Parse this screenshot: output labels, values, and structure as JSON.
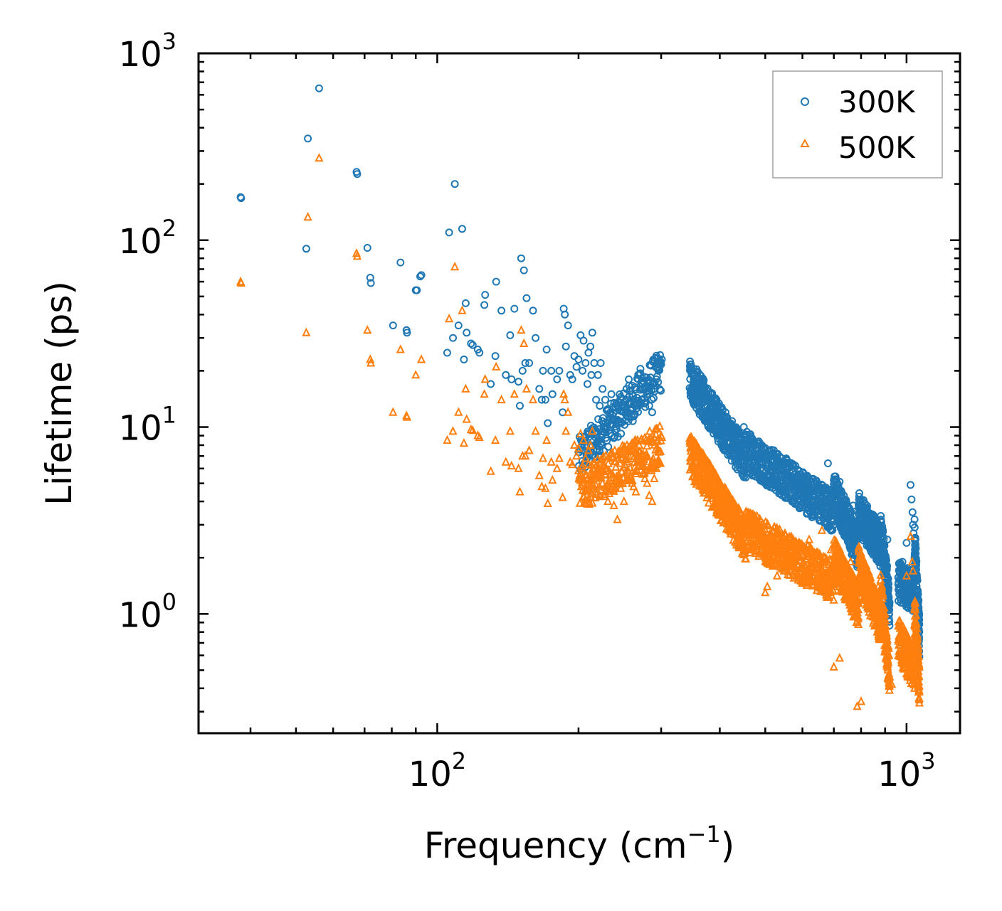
{
  "chart_data": {
    "type": "scatter",
    "xscale": "log",
    "yscale": "log",
    "xlim": [
      31,
      1300
    ],
    "ylim": [
      0.23,
      1000
    ],
    "xlabel": "Frequency (cm",
    "xlabel_sup": "−1",
    "xlabel_end": ")",
    "ylabel": "Lifetime (ps)",
    "x_ticks": [
      {
        "value": 100,
        "base": "10",
        "exp": "2"
      },
      {
        "value": 1000,
        "base": "10",
        "exp": "3"
      }
    ],
    "y_ticks": [
      {
        "value": 1,
        "base": "10",
        "exp": "0"
      },
      {
        "value": 10,
        "base": "10",
        "exp": "1"
      },
      {
        "value": 100,
        "base": "10",
        "exp": "2"
      },
      {
        "value": 1000,
        "base": "10",
        "exp": "3"
      }
    ],
    "legend_position": "top-right",
    "series": [
      {
        "name": "300K",
        "marker": "circle",
        "color": "#1f77b4",
        "points": [
          [
            38.1,
            170
          ],
          [
            38.2,
            168
          ],
          [
            52.6,
            90
          ],
          [
            53.0,
            350
          ],
          [
            56.0,
            650
          ],
          [
            67.3,
            232
          ],
          [
            67.5,
            226
          ],
          [
            71.0,
            91
          ],
          [
            72.0,
            63
          ],
          [
            72.2,
            59
          ],
          [
            80.5,
            35
          ],
          [
            83.5,
            76
          ],
          [
            86.0,
            33
          ],
          [
            86.2,
            32
          ],
          [
            90.0,
            54
          ],
          [
            90.5,
            54
          ],
          [
            92.0,
            64
          ],
          [
            92.5,
            65
          ],
          [
            105,
            25
          ],
          [
            106,
            110
          ],
          [
            108,
            30
          ],
          [
            109,
            200
          ],
          [
            111,
            35
          ],
          [
            113,
            115
          ],
          [
            114,
            23
          ],
          [
            115,
            46
          ],
          [
            115.5,
            32
          ],
          [
            118,
            28
          ],
          [
            119,
            27.5
          ],
          [
            122,
            26
          ],
          [
            123,
            25
          ],
          [
            126,
            45
          ],
          [
            126.5,
            51
          ],
          [
            130,
            17
          ],
          [
            133,
            24
          ],
          [
            133.5,
            60
          ],
          [
            137,
            42
          ],
          [
            140,
            19
          ],
          [
            143,
            31
          ],
          [
            144,
            18
          ],
          [
            146,
            43
          ],
          [
            149,
            17.5
          ],
          [
            150,
            13
          ],
          [
            151,
            80
          ],
          [
            152,
            20
          ],
          [
            153,
            69
          ],
          [
            154,
            22
          ],
          [
            155,
            49
          ],
          [
            157,
            22
          ],
          [
            160,
            42
          ],
          [
            162,
            30
          ],
          [
            165,
            16
          ],
          [
            167,
            14
          ],
          [
            168,
            20
          ],
          [
            170,
            14
          ],
          [
            171,
            26
          ],
          [
            172,
            10.5
          ],
          [
            175,
            20
          ],
          [
            176,
            15
          ],
          [
            180,
            18
          ],
          [
            182,
            20
          ],
          [
            185,
            12
          ],
          [
            186,
            43
          ],
          [
            187,
            40
          ],
          [
            188,
            27
          ],
          [
            190,
            35
          ],
          [
            192,
            19
          ],
          [
            194,
            18
          ],
          [
            196,
            24
          ],
          [
            198,
            21
          ],
          [
            200,
            23
          ],
          [
            202,
            31
          ],
          [
            204,
            20
          ],
          [
            205,
            29
          ],
          [
            207,
            22
          ],
          [
            209,
            17
          ],
          [
            210,
            25
          ],
          [
            212,
            27
          ],
          [
            213,
            19
          ],
          [
            214,
            32
          ],
          [
            216,
            22
          ],
          [
            218,
            14
          ],
          [
            220,
            19
          ],
          [
            222,
            13
          ],
          [
            223,
            22
          ],
          [
            225,
            16
          ],
          [
            228,
            14
          ],
          [
            231,
            12.5
          ],
          [
            235,
            15
          ],
          [
            238,
            11
          ],
          [
            242,
            13
          ],
          [
            246,
            14.5
          ],
          [
            250,
            12
          ],
          [
            253,
            16
          ],
          [
            256,
            18
          ],
          [
            260,
            15
          ],
          [
            262,
            14
          ],
          [
            265,
            13
          ],
          [
            268,
            19
          ],
          [
            271,
            20.5
          ],
          [
            274,
            17
          ],
          [
            277,
            16
          ],
          [
            280,
            15
          ],
          [
            283,
            13
          ],
          [
            287,
            12
          ],
          [
            290,
            16
          ],
          [
            293,
            18
          ],
          [
            296,
            20
          ],
          [
            299,
            22
          ],
          [
            301,
            23
          ]
        ],
        "segments": [
          [
            200,
            6.8,
            300,
            20,
            240
          ],
          [
            345,
            18,
            455,
            6.5,
            420
          ],
          [
            455,
            7.5,
            700,
            3.5,
            520
          ],
          [
            700,
            4.5,
            790,
            2.2,
            260
          ],
          [
            790,
            3.5,
            880,
            2.3,
            220
          ],
          [
            880,
            2.8,
            920,
            1.1,
            120
          ],
          [
            960,
            1.5,
            1040,
            1.3,
            160
          ],
          [
            1040,
            2.5,
            1065,
            0.75,
            110
          ]
        ],
        "outliers": [
          [
            450,
            10
          ],
          [
            470,
            8
          ],
          [
            485,
            7.5
          ],
          [
            520,
            6.5
          ],
          [
            545,
            6
          ],
          [
            600,
            3.8
          ],
          [
            640,
            3.5
          ],
          [
            680,
            6.4
          ],
          [
            700,
            5.2
          ],
          [
            720,
            5.1
          ],
          [
            740,
            4
          ],
          [
            770,
            3.8
          ],
          [
            820,
            3
          ],
          [
            850,
            2.7
          ],
          [
            890,
            2.8
          ],
          [
            910,
            2.5
          ],
          [
            980,
            1.9
          ],
          [
            1000,
            2.4
          ],
          [
            1020,
            4.9
          ],
          [
            1025,
            4.1
          ],
          [
            1030,
            3.5
          ],
          [
            1032,
            3
          ],
          [
            1035,
            2.7
          ]
        ]
      },
      {
        "name": "500K",
        "marker": "triangle",
        "color": "#ff7f0e",
        "points": [
          [
            38.1,
            60
          ],
          [
            38.2,
            59
          ],
          [
            52.6,
            32
          ],
          [
            53.0,
            133
          ],
          [
            56.0,
            275
          ],
          [
            67.3,
            85
          ],
          [
            67.5,
            82
          ],
          [
            71.0,
            33
          ],
          [
            72.0,
            23
          ],
          [
            72.2,
            22
          ],
          [
            80.5,
            12
          ],
          [
            83.5,
            26
          ],
          [
            86.0,
            11.5
          ],
          [
            86.2,
            11.3
          ],
          [
            90.0,
            19
          ],
          [
            92.5,
            23
          ],
          [
            105,
            8.5
          ],
          [
            106,
            38
          ],
          [
            108,
            9.5
          ],
          [
            109,
            72
          ],
          [
            111,
            12
          ],
          [
            113,
            42
          ],
          [
            114,
            8.2
          ],
          [
            115,
            16
          ],
          [
            115.5,
            11
          ],
          [
            118,
            9.7
          ],
          [
            119,
            9.6
          ],
          [
            122,
            9
          ],
          [
            123,
            8.8
          ],
          [
            126,
            15
          ],
          [
            126.5,
            18
          ],
          [
            130,
            5.8
          ],
          [
            133,
            8.5
          ],
          [
            133.5,
            21
          ],
          [
            137,
            14
          ],
          [
            140,
            6.5
          ],
          [
            143,
            9.5
          ],
          [
            144,
            6.2
          ],
          [
            146,
            15
          ],
          [
            149,
            6
          ],
          [
            150,
            4.5
          ],
          [
            151,
            33
          ],
          [
            152,
            7
          ],
          [
            153,
            28
          ],
          [
            154,
            7
          ],
          [
            155,
            16
          ],
          [
            157,
            7.5
          ],
          [
            160,
            14
          ],
          [
            162,
            9.5
          ],
          [
            165,
            5.5
          ],
          [
            167,
            4.8
          ],
          [
            168,
            6.8
          ],
          [
            170,
            4.7
          ],
          [
            171,
            8.5
          ],
          [
            172,
            3.9
          ],
          [
            175,
            6.5
          ],
          [
            176,
            5.2
          ],
          [
            180,
            6
          ],
          [
            182,
            6.8
          ],
          [
            185,
            4.2
          ],
          [
            186,
            15
          ],
          [
            187,
            14
          ],
          [
            188,
            9.5
          ],
          [
            190,
            12
          ],
          [
            192,
            6.5
          ],
          [
            194,
            6.3
          ],
          [
            196,
            8
          ],
          [
            198,
            7
          ],
          [
            200,
            7.7
          ],
          [
            202,
            9.2
          ],
          [
            204,
            6.2
          ],
          [
            205,
            8.5
          ],
          [
            207,
            6.8
          ],
          [
            209,
            5.3
          ],
          [
            210,
            7.5
          ],
          [
            212,
            8
          ],
          [
            213,
            5.8
          ],
          [
            214,
            9.5
          ],
          [
            216,
            6.5
          ],
          [
            218,
            4.5
          ],
          [
            220,
            5.5
          ],
          [
            222,
            4.3
          ],
          [
            223,
            6.5
          ],
          [
            225,
            5
          ],
          [
            228,
            4.5
          ],
          [
            231,
            4
          ],
          [
            235,
            5
          ],
          [
            238,
            3.8
          ],
          [
            242,
            3.2
          ],
          [
            246,
            4.7
          ],
          [
            250,
            4
          ],
          [
            253,
            5.2
          ],
          [
            256,
            5.7
          ],
          [
            260,
            5
          ],
          [
            262,
            4.8
          ],
          [
            265,
            4.5
          ],
          [
            268,
            6.5
          ],
          [
            271,
            7
          ],
          [
            274,
            5.6
          ],
          [
            277,
            5.3
          ],
          [
            280,
            5
          ],
          [
            283,
            4.3
          ],
          [
            287,
            4
          ],
          [
            290,
            5.3
          ],
          [
            293,
            6
          ],
          [
            296,
            6.7
          ],
          [
            299,
            7.4
          ],
          [
            301,
            8.8
          ]
        ],
        "segments": [
          [
            200,
            4.6,
            300,
            8,
            240
          ],
          [
            345,
            7.2,
            455,
            2.5,
            420
          ],
          [
            455,
            2.8,
            700,
            1.5,
            520
          ],
          [
            700,
            2.0,
            790,
            1.1,
            260
          ],
          [
            790,
            1.8,
            880,
            0.9,
            220
          ],
          [
            880,
            1.3,
            920,
            0.48,
            120
          ],
          [
            960,
            0.75,
            1040,
            0.5,
            160
          ],
          [
            1040,
            1.0,
            1065,
            0.42,
            110
          ]
        ],
        "outliers": [
          [
            480,
            2.2
          ],
          [
            500,
            1.3
          ],
          [
            505,
            1.4
          ],
          [
            530,
            1.6
          ],
          [
            560,
            2.3
          ],
          [
            620,
            2.5
          ],
          [
            660,
            2.8
          ],
          [
            690,
            2.2
          ],
          [
            700,
            0.52
          ],
          [
            720,
            0.58
          ],
          [
            760,
            1.9
          ],
          [
            785,
            0.32
          ],
          [
            800,
            0.34
          ],
          [
            820,
            1.7
          ],
          [
            870,
            1.4
          ],
          [
            930,
            0.42
          ],
          [
            1000,
            1.6
          ],
          [
            1020,
            2.6
          ],
          [
            1028,
            1.9
          ],
          [
            1032,
            1.7
          ]
        ]
      }
    ]
  }
}
